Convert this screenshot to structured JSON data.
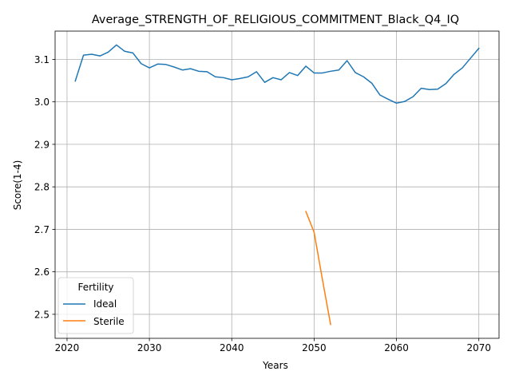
{
  "chart_data": {
    "type": "line",
    "title": "Average_STRENGTH_OF_RELIGIOUS_COMMITMENT_Black_Q4_IQ",
    "xlabel": "Years",
    "ylabel": "Score(1-4)",
    "xlim": [
      2018.55,
      2072.45
    ],
    "ylim": [
      2.4435,
      3.1665
    ],
    "xticks": [
      2020,
      2030,
      2040,
      2050,
      2060,
      2070
    ],
    "xtick_labels": [
      "2020",
      "2030",
      "2040",
      "2050",
      "2060",
      "2070"
    ],
    "yticks": [
      2.5,
      2.6,
      2.7,
      2.8,
      2.9,
      3.0,
      3.1
    ],
    "ytick_labels": [
      "2.5",
      "2.6",
      "2.7",
      "2.8",
      "2.9",
      "3.0",
      "3.1"
    ],
    "grid": true,
    "legend": {
      "title": "Fertility",
      "placement": "lower-left"
    },
    "series": [
      {
        "name": "Ideal",
        "color": "#1f77b4",
        "x": [
          2021,
          2022,
          2023,
          2024,
          2025,
          2026,
          2027,
          2028,
          2029,
          2030,
          2031,
          2032,
          2033,
          2034,
          2035,
          2036,
          2037,
          2038,
          2039,
          2040,
          2041,
          2042,
          2043,
          2044,
          2045,
          2046,
          2047,
          2048,
          2049,
          2050,
          2051,
          2052,
          2053,
          2054,
          2055,
          2056,
          2057,
          2058,
          2059,
          2060,
          2061,
          2062,
          2063,
          2064,
          2065,
          2066,
          2067,
          2068,
          2069,
          2070
        ],
        "values": [
          3.049,
          3.11,
          3.112,
          3.108,
          3.117,
          3.134,
          3.119,
          3.115,
          3.09,
          3.08,
          3.089,
          3.088,
          3.082,
          3.075,
          3.078,
          3.072,
          3.071,
          3.059,
          3.057,
          3.052,
          3.055,
          3.059,
          3.071,
          3.046,
          3.057,
          3.052,
          3.069,
          3.062,
          3.084,
          3.068,
          3.068,
          3.072,
          3.075,
          3.097,
          3.069,
          3.059,
          3.044,
          3.016,
          3.006,
          2.997,
          3.001,
          3.012,
          3.032,
          3.029,
          3.03,
          3.043,
          3.065,
          3.08,
          3.103,
          3.126
        ]
      },
      {
        "name": "Sterile",
        "color": "#ff7f0e",
        "x": [
          2049,
          2050,
          2051,
          2052
        ],
        "values": [
          2.742,
          2.693,
          2.583,
          2.476
        ]
      }
    ]
  }
}
